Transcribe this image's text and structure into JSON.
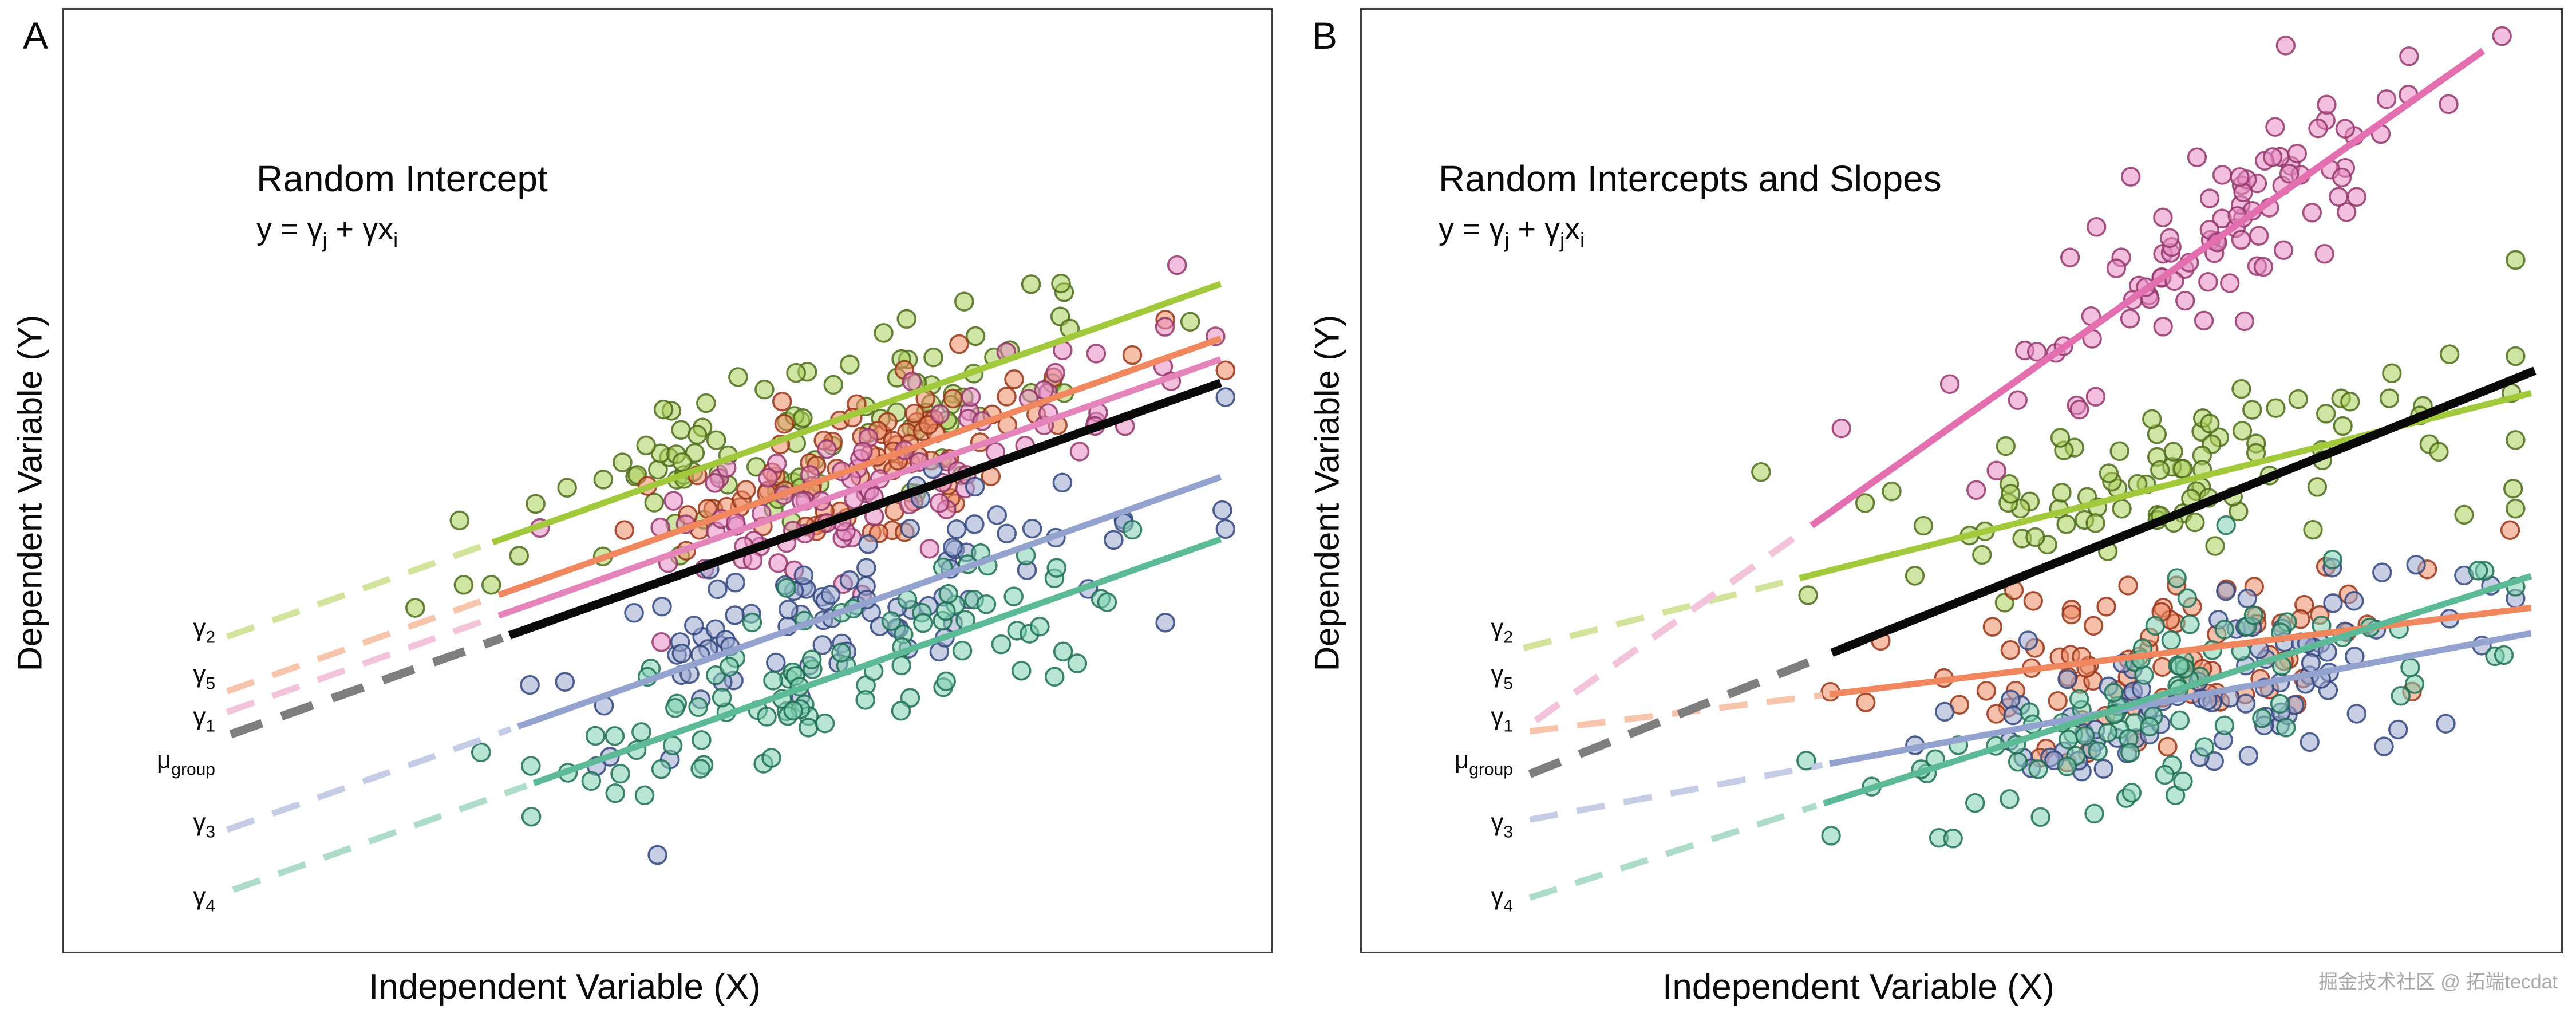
{
  "page": {
    "background": "#ffffff",
    "watermark": "掘金技术社区 @ 拓端tecdat"
  },
  "chart_data": {
    "type": "scatter",
    "x_label": "Independent Variable (X)",
    "y_label": "Dependent Variable (Y)",
    "x_range": [
      0,
      1
    ],
    "y_range": [
      0,
      1
    ],
    "panels": [
      {
        "letter": "A",
        "title": "Random Intercept",
        "formula": [
          {
            "t": "y = γ"
          },
          {
            "t": "j",
            "sub": true
          },
          {
            "t": " + γx"
          },
          {
            "t": "i",
            "sub": true
          }
        ],
        "seed": 1337,
        "lines": [
          {
            "id": "gamma5",
            "slope": 0.455,
            "intercept": 0.215,
            "dash_from": 0.135,
            "solid_from": 0.36,
            "solid_to": 0.958,
            "color": "#f0875f",
            "dash_color": "#f7c5ac",
            "width": 11
          },
          {
            "id": "gamma1",
            "slope": 0.455,
            "intercept": 0.193,
            "dash_from": 0.135,
            "solid_from": 0.36,
            "solid_to": 0.958,
            "color": "#e583bb",
            "dash_color": "#f3c2db",
            "width": 11
          },
          {
            "id": "gamma3",
            "slope": 0.455,
            "intercept": 0.068,
            "dash_from": 0.135,
            "solid_from": 0.376,
            "solid_to": 0.958,
            "color": "#93a2ce",
            "dash_color": "#c5cde6",
            "width": 11
          },
          {
            "id": "gamma4",
            "slope": 0.455,
            "intercept": 0.002,
            "dash_from": 0.14,
            "solid_from": 0.389,
            "solid_to": 0.958,
            "color": "#5cba97",
            "dash_color": "#addcc9",
            "width": 11
          },
          {
            "id": "gamma2",
            "slope": 0.455,
            "intercept": 0.273,
            "dash_from": 0.135,
            "solid_from": 0.355,
            "solid_to": 0.958,
            "color": "#a2c83c",
            "dash_color": "#d2e49c",
            "width": 11
          },
          {
            "id": "mu_group",
            "slope": 0.455,
            "intercept": 0.168,
            "dash_from": 0.138,
            "solid_from": 0.369,
            "solid_to": 0.958,
            "color": "#0a0a0a",
            "dash_color": "#7e7e7e",
            "width": 15
          }
        ],
        "clusters": [
          {
            "line": "gamma2",
            "n": 100,
            "x_center": 0.63,
            "x_spread": 0.13,
            "y_noise": 0.045,
            "fill": "#a9cf5a",
            "stroke": "#4d6c1c"
          },
          {
            "line": "gamma5",
            "n": 90,
            "x_center": 0.66,
            "x_spread": 0.1,
            "y_noise": 0.04,
            "fill": "#ef8a62",
            "stroke": "#97351a"
          },
          {
            "line": "gamma1",
            "n": 90,
            "x_center": 0.68,
            "x_spread": 0.1,
            "y_noise": 0.04,
            "fill": "#e78ac3",
            "stroke": "#93376b"
          },
          {
            "line": "gamma3",
            "n": 95,
            "x_center": 0.67,
            "x_spread": 0.12,
            "y_noise": 0.045,
            "fill": "#9aa8d0",
            "stroke": "#32477e"
          },
          {
            "line": "gamma4",
            "n": 95,
            "x_center": 0.63,
            "x_spread": 0.13,
            "y_noise": 0.04,
            "fill": "#7fd0b0",
            "stroke": "#1f6f54"
          }
        ],
        "intercept_labels": [
          {
            "base": "γ",
            "sub": "2",
            "y": 0.343
          },
          {
            "base": "γ",
            "sub": "5",
            "y": 0.294
          },
          {
            "base": "γ",
            "sub": "1",
            "y": 0.249
          },
          {
            "base": "μ",
            "sub": "group",
            "y": 0.203
          },
          {
            "base": "γ",
            "sub": "3",
            "y": 0.137
          },
          {
            "base": "γ",
            "sub": "4",
            "y": 0.059
          }
        ]
      },
      {
        "letter": "B",
        "title": "Random Intercepts and Slopes",
        "formula": [
          {
            "t": "y = γ"
          },
          {
            "t": "j",
            "sub": true
          },
          {
            "t": " + γ"
          },
          {
            "t": "j",
            "sub": true
          },
          {
            "t": "x"
          },
          {
            "t": "i",
            "sub": true
          }
        ],
        "seed": 7331,
        "lines": [
          {
            "id": "gamma5",
            "slope": 0.157,
            "intercept": 0.212,
            "dash_from": 0.14,
            "solid_from": 0.39,
            "solid_to": 0.975,
            "color": "#f0875f",
            "dash_color": "#f7c5ac",
            "width": 11
          },
          {
            "id": "gamma3",
            "slope": 0.237,
            "intercept": 0.107,
            "dash_from": 0.14,
            "solid_from": 0.39,
            "solid_to": 0.975,
            "color": "#93a2ce",
            "dash_color": "#c5cde6",
            "width": 11
          },
          {
            "id": "gamma4",
            "slope": 0.409,
            "intercept": 0.0,
            "dash_from": 0.14,
            "solid_from": 0.385,
            "solid_to": 0.975,
            "color": "#5cba97",
            "dash_color": "#addcc9",
            "width": 11
          },
          {
            "id": "gamma2",
            "slope": 0.322,
            "intercept": 0.279,
            "dash_from": 0.135,
            "solid_from": 0.365,
            "solid_to": 0.975,
            "color": "#a2c83c",
            "dash_color": "#d2e49c",
            "width": 11
          },
          {
            "id": "gamma1",
            "slope": 0.9,
            "intercept": 0.115,
            "dash_from": 0.145,
            "solid_from": 0.375,
            "solid_to": 0.935,
            "color": "#e46fb0",
            "dash_color": "#f3c2db",
            "width": 12
          },
          {
            "id": "mu_group",
            "slope": 0.511,
            "intercept": 0.117,
            "dash_from": 0.14,
            "solid_from": 0.392,
            "solid_to": 0.978,
            "color": "#0a0a0a",
            "dash_color": "#7e7e7e",
            "width": 15
          }
        ],
        "clusters": [
          {
            "line": "gamma2",
            "n": 95,
            "x_center": 0.67,
            "x_spread": 0.12,
            "y_noise": 0.05,
            "fill": "#a9cf5a",
            "stroke": "#4d6c1c"
          },
          {
            "line": "gamma5",
            "n": 85,
            "x_center": 0.66,
            "x_spread": 0.1,
            "y_noise": 0.045,
            "fill": "#ef8a62",
            "stroke": "#97351a"
          },
          {
            "line": "gamma3",
            "n": 95,
            "x_center": 0.71,
            "x_spread": 0.11,
            "y_noise": 0.045,
            "fill": "#9aa8d0",
            "stroke": "#32477e"
          },
          {
            "line": "gamma4",
            "n": 90,
            "x_center": 0.65,
            "x_spread": 0.12,
            "y_noise": 0.05,
            "fill": "#7fd0b0",
            "stroke": "#1f6f54"
          },
          {
            "line": "gamma1",
            "n": 95,
            "x_center": 0.7,
            "x_spread": 0.1,
            "y_noise": 0.05,
            "fill": "#e78ac3",
            "stroke": "#93376b"
          }
        ],
        "intercept_labels": [
          {
            "base": "γ",
            "sub": "2",
            "y": 0.343
          },
          {
            "base": "γ",
            "sub": "5",
            "y": 0.294
          },
          {
            "base": "γ",
            "sub": "1",
            "y": 0.249
          },
          {
            "base": "μ",
            "sub": "group",
            "y": 0.203
          },
          {
            "base": "γ",
            "sub": "3",
            "y": 0.137
          },
          {
            "base": "γ",
            "sub": "4",
            "y": 0.059
          }
        ]
      }
    ]
  }
}
